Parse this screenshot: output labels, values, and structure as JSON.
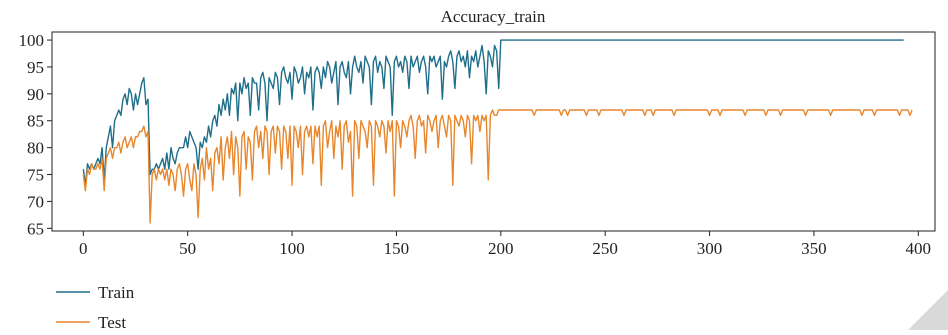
{
  "chart_data": {
    "type": "line",
    "title": "Accuracy_train",
    "xlabel": "",
    "ylabel": "",
    "xlim": [
      -15,
      408
    ],
    "ylim": [
      64.5,
      101.5
    ],
    "xticks": [
      0,
      50,
      100,
      150,
      200,
      250,
      300,
      350,
      400
    ],
    "yticks": [
      65,
      70,
      75,
      80,
      85,
      90,
      95,
      100
    ],
    "grid": false,
    "legend": "bottom-left, outside",
    "series": [
      {
        "name": "Train",
        "color": "#1f6f8b",
        "values": [
          76,
          73,
          77,
          76,
          77,
          76,
          77,
          78,
          77,
          80,
          74,
          80,
          82,
          84,
          80,
          85,
          86,
          87,
          86,
          89,
          90,
          88,
          91,
          90,
          87,
          90,
          88,
          90,
          92,
          93,
          88,
          89,
          75,
          76,
          76,
          77,
          76,
          77,
          78,
          76,
          79,
          76,
          80,
          78,
          77,
          79,
          80,
          80,
          80,
          82,
          80,
          83,
          82,
          81,
          80,
          76,
          81,
          80,
          82,
          81,
          84,
          82,
          85,
          86,
          84,
          88,
          86,
          89,
          87,
          90,
          86,
          91,
          90,
          92,
          85,
          92,
          90,
          93,
          91,
          92,
          86,
          93,
          92,
          92,
          87,
          93,
          94,
          92,
          85,
          93,
          92,
          91,
          94,
          93,
          88,
          94,
          95,
          93,
          92,
          94,
          89,
          95,
          94,
          92,
          93,
          95,
          90,
          94,
          93,
          95,
          87,
          94,
          95,
          94,
          91,
          95,
          93,
          96,
          95,
          92,
          94,
          96,
          88,
          95,
          96,
          94,
          93,
          96,
          90,
          95,
          97,
          95,
          94,
          96,
          92,
          97,
          96,
          95,
          88,
          96,
          97,
          94,
          96,
          95,
          91,
          97,
          96,
          95,
          86,
          96,
          97,
          95,
          96,
          94,
          97,
          96,
          91,
          97,
          95,
          96,
          97,
          94,
          96,
          97,
          95,
          90,
          97,
          96,
          97,
          95,
          96,
          97,
          89,
          96,
          95,
          97,
          98,
          96,
          91,
          97,
          98,
          96,
          97,
          95,
          98,
          93,
          97,
          96,
          98,
          95,
          97,
          99,
          96,
          90,
          98,
          97,
          95,
          99,
          98,
          91,
          100,
          100,
          100,
          100,
          100,
          100,
          100,
          100,
          100,
          100,
          100,
          100,
          100,
          100,
          100,
          100,
          100,
          100,
          100,
          100,
          100,
          100,
          100,
          100,
          100,
          100,
          100,
          100,
          100,
          100,
          100,
          100,
          100,
          100,
          100,
          100,
          100,
          100,
          100,
          100,
          100,
          100,
          100,
          100,
          100,
          100,
          100,
          100,
          100,
          100,
          100,
          100,
          100,
          100,
          100,
          100,
          100,
          100,
          100,
          100,
          100,
          100,
          100,
          100,
          100,
          100,
          100,
          100,
          100,
          100,
          100,
          100,
          100,
          100,
          100,
          100,
          100,
          100,
          100,
          100,
          100,
          100,
          100,
          100,
          100,
          100,
          100,
          100,
          100,
          100,
          100,
          100,
          100,
          100,
          100,
          100,
          100,
          100,
          100,
          100,
          100,
          100,
          100,
          100,
          100,
          100,
          100,
          100,
          100,
          100,
          100,
          100,
          100,
          100,
          100,
          100,
          100,
          100,
          100,
          100,
          100,
          100,
          100,
          100,
          100,
          100,
          100,
          100,
          100,
          100,
          100,
          100,
          100,
          100,
          100,
          100,
          100,
          100,
          100,
          100,
          100,
          100,
          100,
          100,
          100,
          100,
          100,
          100,
          100,
          100,
          100,
          100,
          100,
          100,
          100,
          100,
          100,
          100,
          100,
          100,
          100,
          100,
          100,
          100,
          100,
          100,
          100,
          100,
          100,
          100,
          100,
          100,
          100,
          100,
          100,
          100,
          100,
          100,
          100,
          100,
          100,
          100,
          100,
          100,
          100,
          100,
          100,
          100,
          100,
          100,
          100,
          100,
          100,
          100
        ]
      },
      {
        "name": "Test",
        "color": "#e8862c",
        "values": [
          75,
          72,
          76,
          75,
          77,
          76,
          76,
          77,
          76,
          78,
          72,
          78,
          79,
          80,
          78,
          80,
          80,
          81,
          79,
          81,
          82,
          80,
          81,
          82,
          80,
          82,
          82,
          83,
          83,
          84,
          82,
          83,
          66,
          75,
          76,
          74,
          76,
          75,
          76,
          74,
          76,
          73,
          76,
          75,
          72,
          76,
          77,
          75,
          71,
          76,
          77,
          74,
          72,
          77,
          75,
          67,
          76,
          78,
          74,
          80,
          76,
          78,
          72,
          79,
          80,
          77,
          82,
          74,
          80,
          82,
          78,
          83,
          75,
          82,
          80,
          71,
          82,
          83,
          76,
          82,
          81,
          74,
          83,
          84,
          80,
          83,
          78,
          84,
          83,
          75,
          83,
          84,
          79,
          84,
          83,
          76,
          84,
          83,
          78,
          84,
          73,
          84,
          83,
          80,
          84,
          75,
          83,
          84,
          82,
          84,
          77,
          84,
          82,
          84,
          73,
          84,
          85,
          80,
          83,
          85,
          78,
          84,
          82,
          85,
          76,
          84,
          85,
          81,
          83,
          71,
          85,
          84,
          78,
          85,
          84,
          83,
          80,
          85,
          84,
          73,
          85,
          84,
          82,
          85,
          84,
          79,
          85,
          83,
          85,
          71,
          85,
          84,
          80,
          85,
          84,
          82,
          85,
          86,
          84,
          78,
          85,
          86,
          84,
          85,
          79,
          86,
          85,
          83,
          85,
          86,
          80,
          85,
          86,
          84,
          82,
          86,
          85,
          73,
          86,
          85,
          84,
          86,
          85,
          82,
          86,
          85,
          77,
          86,
          85,
          86,
          83,
          86,
          85,
          86,
          74,
          86,
          87,
          86,
          86,
          87,
          87,
          87,
          87,
          87,
          87,
          87,
          87,
          87,
          87,
          87,
          87,
          87,
          87,
          87,
          87,
          87,
          86,
          87,
          87,
          87,
          87,
          87,
          87,
          87,
          87,
          87,
          87,
          87,
          87,
          86,
          87,
          87,
          86,
          87,
          87,
          87,
          87,
          87,
          87,
          87,
          87,
          86,
          87,
          87,
          87,
          87,
          87,
          86,
          87,
          87,
          87,
          87,
          87,
          87,
          87,
          87,
          87,
          87,
          87,
          86,
          87,
          87,
          87,
          87,
          87,
          87,
          87,
          87,
          87,
          86,
          87,
          87,
          87,
          86,
          87,
          87,
          87,
          87,
          87,
          87,
          87,
          87,
          87,
          86,
          87,
          87,
          87,
          87,
          87,
          87,
          87,
          87,
          87,
          87,
          87,
          87,
          87,
          87,
          87,
          87,
          86,
          87,
          87,
          87,
          87,
          86,
          87,
          87,
          87,
          87,
          87,
          87,
          87,
          87,
          87,
          87,
          87,
          86,
          87,
          87,
          87,
          87,
          87,
          87,
          87,
          87,
          87,
          86,
          87,
          87,
          87,
          87,
          87,
          87,
          86,
          87,
          87,
          87,
          87,
          87,
          87,
          87,
          87,
          87,
          87,
          87,
          86,
          87,
          87,
          87,
          87,
          87,
          87,
          87,
          87,
          87,
          87,
          87,
          86,
          87,
          87,
          87,
          87,
          87,
          87,
          87,
          87,
          87,
          87,
          87,
          87,
          87,
          87,
          86,
          87,
          87,
          87,
          87,
          87,
          86,
          87,
          87,
          87,
          87,
          87,
          87,
          87,
          87,
          87,
          87,
          87,
          86,
          87,
          87,
          87,
          87,
          86,
          87
        ]
      }
    ]
  }
}
